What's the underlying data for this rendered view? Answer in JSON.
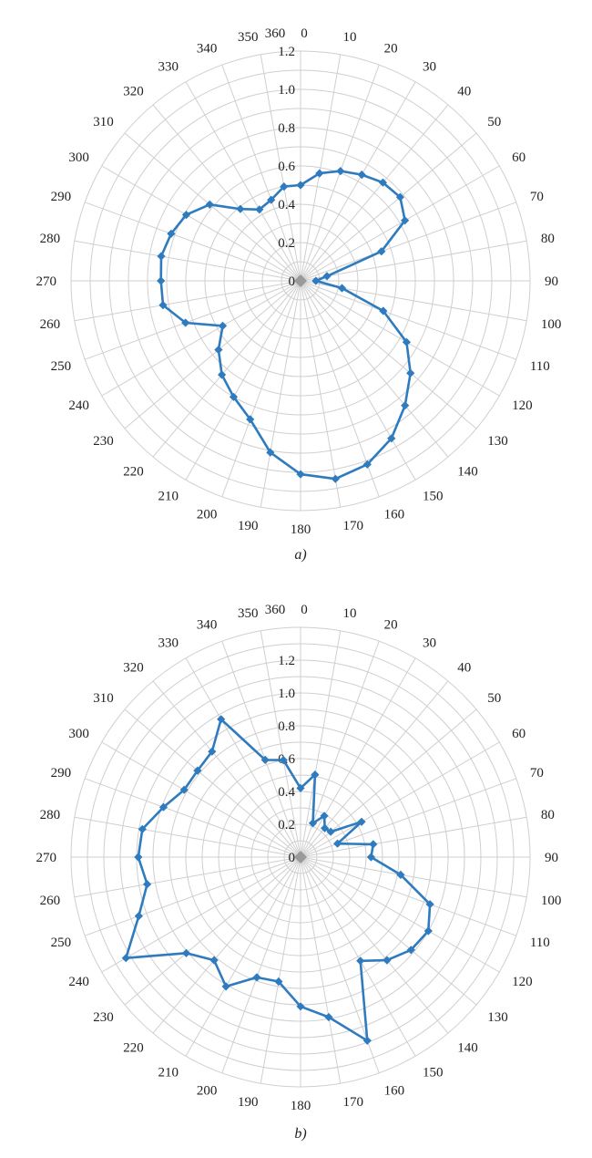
{
  "chart_data": [
    {
      "type": "radar",
      "caption": "a)",
      "angle_ticks": [
        0,
        10,
        20,
        30,
        40,
        50,
        60,
        70,
        80,
        90,
        100,
        110,
        120,
        130,
        140,
        150,
        160,
        170,
        180,
        190,
        200,
        210,
        220,
        230,
        240,
        250,
        260,
        270,
        280,
        290,
        300,
        310,
        320,
        330,
        340,
        350,
        360
      ],
      "radial_ticks": [
        "0",
        "0.2",
        "0.4",
        "0.6",
        "0.8",
        "1.0",
        "1.2"
      ],
      "rlim": [
        0,
        1.2
      ],
      "grid": true,
      "legend": "none",
      "series": [
        {
          "color": "#2e7bbf",
          "angles": [
            0,
            10,
            20,
            30,
            40,
            50,
            60,
            70,
            80,
            90,
            100,
            110,
            120,
            130,
            140,
            150,
            160,
            170,
            180,
            190,
            200,
            210,
            220,
            230,
            240,
            250,
            260,
            270,
            280,
            290,
            300,
            310,
            320,
            330,
            340,
            350,
            360
          ],
          "values": [
            0.5,
            0.57,
            0.61,
            0.64,
            0.67,
            0.68,
            0.63,
            0.45,
            0.14,
            0.08,
            0.22,
            0.46,
            0.64,
            0.75,
            0.85,
            0.95,
            1.02,
            1.05,
            1.01,
            0.91,
            0.77,
            0.7,
            0.64,
            0.56,
            0.47,
            0.64,
            0.73,
            0.73,
            0.74,
            0.72,
            0.69,
            0.62,
            0.49,
            0.43,
            0.45,
            0.5,
            0.5
          ]
        }
      ]
    },
    {
      "type": "radar",
      "caption": "b)",
      "angle_ticks": [
        0,
        10,
        20,
        30,
        40,
        50,
        60,
        70,
        80,
        90,
        100,
        110,
        120,
        130,
        140,
        150,
        160,
        170,
        180,
        190,
        200,
        210,
        220,
        230,
        240,
        250,
        260,
        270,
        280,
        290,
        300,
        310,
        320,
        330,
        340,
        350,
        360
      ],
      "radial_ticks": [
        "0",
        "0.2",
        "0.4",
        "0.6",
        "0.8",
        "1.0",
        "1.2"
      ],
      "rlim": [
        0,
        1.4
      ],
      "grid": true,
      "legend": "none",
      "series": [
        {
          "color": "#2e7bbf",
          "angles": [
            0,
            10,
            20,
            30,
            40,
            50,
            60,
            70,
            80,
            90,
            100,
            110,
            120,
            130,
            140,
            150,
            160,
            170,
            180,
            190,
            200,
            210,
            220,
            230,
            240,
            250,
            260,
            270,
            280,
            290,
            300,
            310,
            320,
            330,
            340,
            350,
            360
          ],
          "values": [
            0.42,
            0.51,
            0.22,
            0.29,
            0.23,
            0.24,
            0.43,
            0.24,
            0.45,
            0.43,
            0.62,
            0.84,
            0.9,
            0.88,
            0.82,
            0.73,
            1.19,
            0.99,
            0.91,
            0.77,
            0.78,
            0.91,
            0.82,
            0.91,
            1.23,
            1.05,
            0.95,
            0.99,
            0.98,
            0.89,
            0.82,
            0.82,
            0.84,
            0.97,
            0.63,
            0.6,
            0.42
          ]
        }
      ]
    }
  ]
}
